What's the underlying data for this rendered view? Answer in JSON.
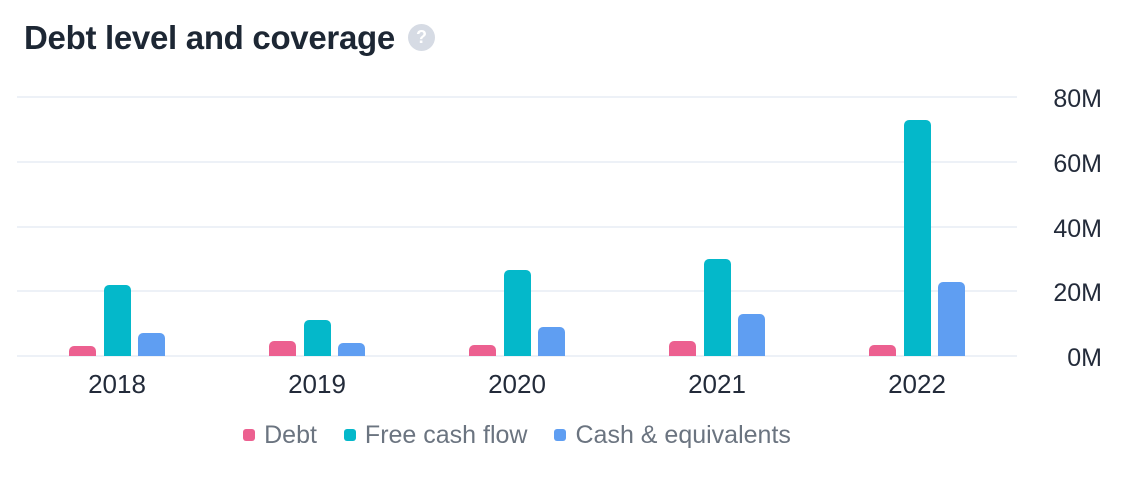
{
  "header": {
    "title": "Debt level and coverage",
    "help_glyph": "?"
  },
  "ui_colors": {
    "title_text": "#1d2734",
    "axis_text": "#232b3a",
    "legend_text": "#6b7480",
    "gridline": "#edf1f7",
    "help_icon_bg": "#d6dbe4",
    "background": "#ffffff"
  },
  "chart_data": {
    "type": "bar",
    "title": "Debt level and coverage",
    "unit": "M",
    "categories": [
      "2018",
      "2019",
      "2020",
      "2021",
      "2022"
    ],
    "series": [
      {
        "name": "Debt",
        "color": "#ec6090",
        "values": [
          3,
          4.5,
          3.5,
          4.5,
          3.5
        ]
      },
      {
        "name": "Free cash flow",
        "color": "#04b8ca",
        "values": [
          22,
          11,
          26.5,
          30,
          73
        ]
      },
      {
        "name": "Cash & equivalents",
        "color": "#5f9ef2",
        "values": [
          7,
          4,
          9,
          13,
          23
        ]
      }
    ],
    "xlabel": "",
    "ylabel": "",
    "ylim": [
      0,
      80
    ],
    "yticks": [
      0,
      20,
      40,
      60,
      80
    ],
    "ytick_labels": [
      "0M",
      "20M",
      "40M",
      "60M",
      "80M"
    ],
    "grid": true,
    "legend_position": "bottom",
    "yaxis_side": "right"
  }
}
